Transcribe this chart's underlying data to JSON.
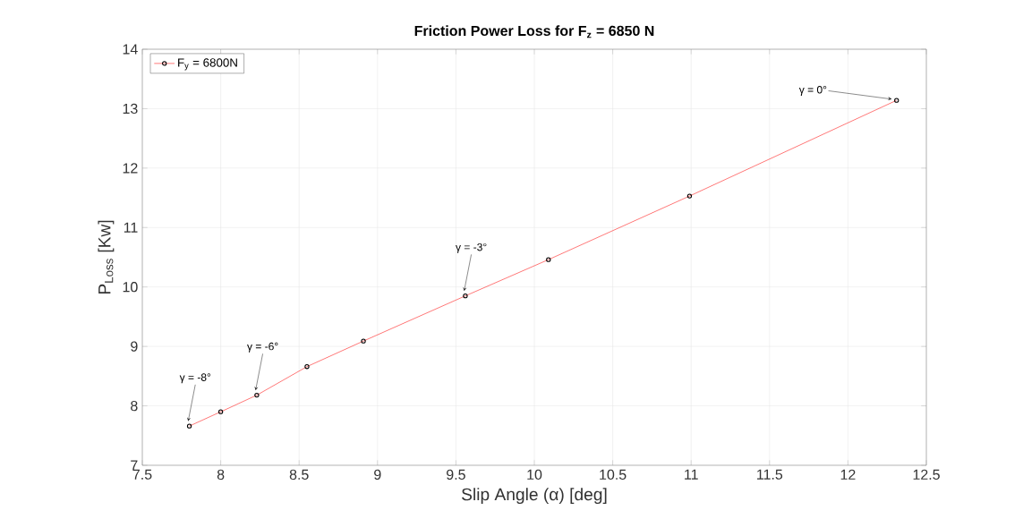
{
  "chart_data": {
    "type": "line",
    "title": "Friction Power Loss for F$_{z}$ = 6850 N",
    "xlabel": "Slip Angle (α) [deg]",
    "ylabel": "P$_{Loss}$ [Kw]",
    "x": [
      7.8,
      8.0,
      8.23,
      8.55,
      8.91,
      9.56,
      10.09,
      10.99,
      12.31
    ],
    "series": [
      {
        "name": "F$_{y}$ = 6800N",
        "color": "#ff0000",
        "values": [
          7.66,
          7.9,
          8.18,
          8.66,
          9.09,
          9.85,
          10.46,
          11.53,
          13.14
        ]
      }
    ],
    "xlim": [
      7.5,
      12.5
    ],
    "xticks": [
      7.5,
      8,
      8.5,
      9,
      9.5,
      10,
      10.5,
      11,
      11.5,
      12,
      12.5
    ],
    "ylim": [
      7,
      14
    ],
    "yticks": [
      7,
      8,
      9,
      10,
      11,
      12,
      13,
      14
    ],
    "grid": true,
    "legend": "top left",
    "marker": "circle",
    "line_style": "solid",
    "annotations": [
      {
        "text": "γ = -8°",
        "x": 7.8,
        "y": 7.66
      },
      {
        "text": "γ = -6°",
        "x": 8.23,
        "y": 8.18
      },
      {
        "text": "γ = -3°",
        "x": 9.56,
        "y": 9.85
      },
      {
        "text": "γ = 0°",
        "x": 12.31,
        "y": 13.14
      }
    ]
  }
}
